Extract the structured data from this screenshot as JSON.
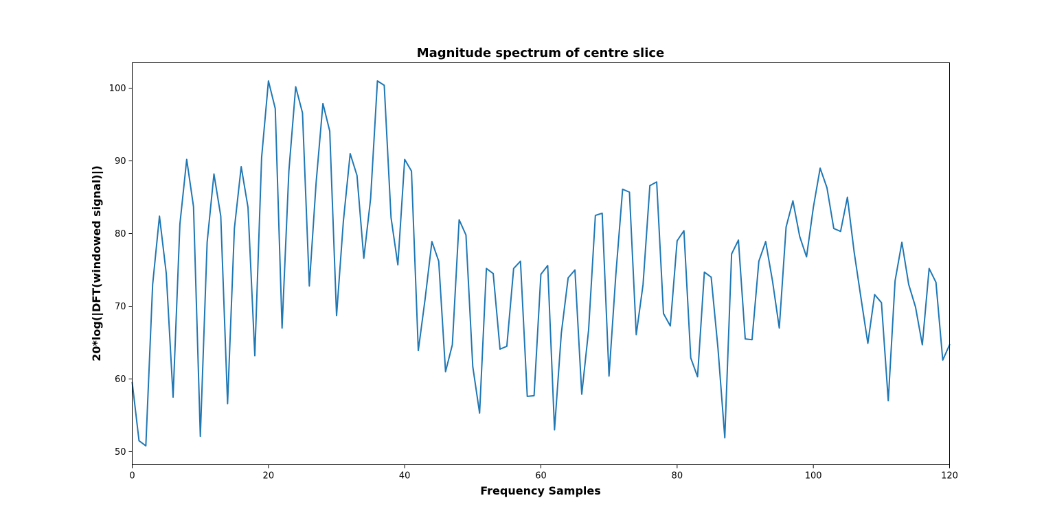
{
  "chart_data": {
    "type": "line",
    "title": "Magnitude spectrum of centre slice",
    "xlabel": "Frequency Samples",
    "ylabel": "20*log(|DFT(windowed signal)|)",
    "xlim": [
      0,
      120
    ],
    "ylim": [
      48.2,
      103.5
    ],
    "xticks": [
      0,
      20,
      40,
      60,
      80,
      100,
      120
    ],
    "yticks": [
      50,
      60,
      70,
      80,
      90,
      100
    ],
    "grid": false,
    "line_color": "#1f77b4",
    "series": [
      {
        "x": [
          0,
          1,
          2,
          3,
          4,
          5,
          6,
          7,
          8,
          9,
          10,
          11,
          12,
          13,
          14,
          15,
          16,
          17,
          18,
          19,
          20,
          21,
          22,
          23,
          24,
          25,
          26,
          27,
          28,
          29,
          30,
          31,
          32,
          33,
          34,
          35,
          36,
          37,
          38,
          39,
          40,
          41,
          42,
          43,
          44,
          45,
          46,
          47,
          48,
          49,
          50,
          51,
          52,
          53,
          54,
          55,
          56,
          57,
          58,
          59,
          60,
          61,
          62,
          63,
          64,
          65,
          66,
          67,
          68,
          69,
          70,
          71,
          72,
          73,
          74,
          75,
          76,
          77,
          78,
          79,
          80,
          81,
          82,
          83,
          84,
          85,
          86,
          87,
          88,
          89,
          90,
          91,
          92,
          93,
          94,
          95,
          96,
          97,
          98,
          99,
          100,
          101,
          102,
          103,
          104,
          105,
          106,
          107,
          108,
          109,
          110,
          111,
          112,
          113,
          114,
          115,
          116,
          117,
          118,
          119,
          120
        ],
        "values": [
          59.5,
          51.5,
          50.8,
          73.0,
          82.4,
          74.5,
          57.5,
          81.3,
          90.2,
          83.7,
          52.1,
          78.8,
          88.2,
          82.4,
          56.6,
          80.7,
          89.2,
          83.6,
          63.2,
          90.5,
          101.0,
          97.2,
          67.0,
          88.6,
          100.2,
          96.6,
          72.8,
          87.0,
          97.9,
          94.1,
          68.7,
          81.7,
          91.0,
          88.0,
          76.6,
          84.8,
          101.0,
          100.4,
          82.2,
          75.7,
          90.2,
          88.6,
          63.9,
          71.0,
          78.9,
          76.2,
          61.0,
          64.7,
          81.9,
          79.8,
          61.7,
          55.3,
          75.2,
          74.5,
          64.1,
          64.5,
          75.2,
          76.2,
          57.6,
          57.7,
          74.4,
          75.6,
          53.0,
          66.3,
          73.9,
          75.0,
          57.9,
          66.7,
          82.5,
          82.8,
          60.4,
          74.3,
          86.1,
          85.7,
          66.1,
          73.0,
          86.6,
          87.1,
          69.0,
          67.3,
          79.0,
          80.4,
          62.9,
          60.3,
          74.7,
          74.0,
          64.2,
          51.9,
          77.2,
          79.1,
          65.5,
          65.4,
          76.2,
          78.9,
          73.5,
          67.0,
          80.9,
          84.5,
          79.6,
          76.8,
          83.6,
          89.0,
          86.3,
          80.7,
          80.3,
          85.0,
          77.4,
          71.1,
          64.9,
          71.6,
          70.5,
          57.0,
          73.5,
          78.8,
          73.0,
          69.9,
          64.7,
          75.2,
          73.3,
          62.6,
          64.7
        ]
      }
    ]
  }
}
